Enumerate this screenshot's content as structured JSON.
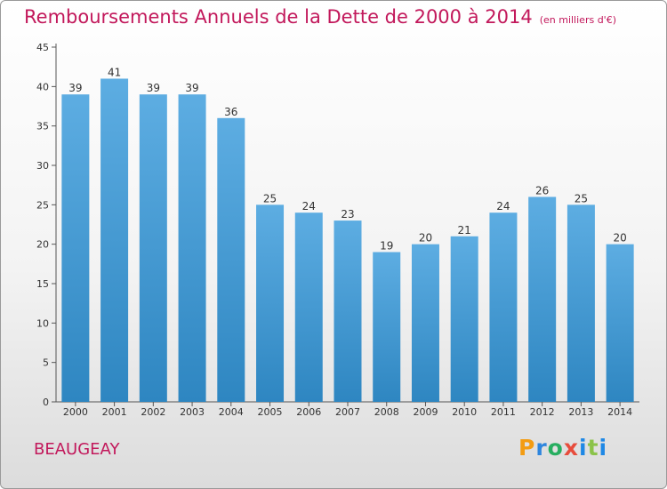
{
  "chart_data": {
    "type": "bar",
    "title": "Remboursements Annuels de la Dette de 2000 à 2014",
    "unit_note": "(en milliers d'€)",
    "categories": [
      "2000",
      "2001",
      "2002",
      "2003",
      "2004",
      "2005",
      "2006",
      "2007",
      "2008",
      "2009",
      "2010",
      "2011",
      "2012",
      "2013",
      "2014"
    ],
    "values": [
      39,
      41,
      39,
      39,
      36,
      25,
      24,
      23,
      19,
      20,
      21,
      24,
      26,
      25,
      20
    ],
    "yticks": [
      0,
      5,
      10,
      15,
      20,
      25,
      30,
      35,
      40,
      45
    ],
    "ylim": [
      0,
      45
    ],
    "xlabel": "",
    "ylabel": "",
    "grid": false,
    "colors": {
      "bar_top": "#5dade2",
      "bar_bottom": "#2e86c1",
      "title": "#c2185b",
      "text": "#333333"
    }
  },
  "place": "BEAUGEAY",
  "brand": {
    "p": "P",
    "r": "r",
    "o": "o",
    "x": "x",
    "i": "i",
    "t": "t",
    "i2": "i"
  }
}
